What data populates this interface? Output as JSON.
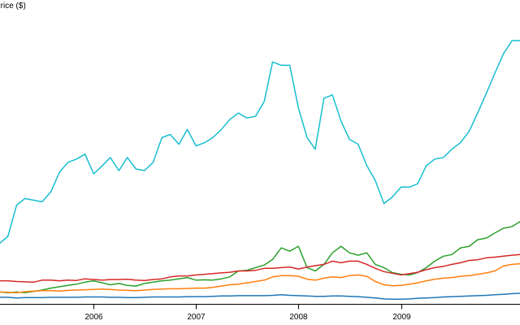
{
  "chart_data": {
    "type": "line",
    "ylabel": "Price ($)",
    "xlim": [
      "2005-02-01",
      "2010-03-01"
    ],
    "ylim": [
      0,
      800
    ],
    "x_ticks": [
      {
        "date": "2006-01-01",
        "label": "2006"
      },
      {
        "date": "2007-01-01",
        "label": "2007"
      },
      {
        "date": "2008-01-01",
        "label": "2008"
      },
      {
        "date": "2009-01-01",
        "label": "2009"
      }
    ],
    "x": [
      "2005-02",
      "2005-03",
      "2005-04",
      "2005-05",
      "2005-06",
      "2005-07",
      "2005-08",
      "2005-09",
      "2005-10",
      "2005-11",
      "2005-12",
      "2006-01",
      "2006-02",
      "2006-03",
      "2006-04",
      "2006-05",
      "2006-06",
      "2006-07",
      "2006-08",
      "2006-09",
      "2006-10",
      "2006-11",
      "2006-12",
      "2007-01",
      "2007-02",
      "2007-03",
      "2007-04",
      "2007-05",
      "2007-06",
      "2007-07",
      "2007-08",
      "2007-09",
      "2007-10",
      "2007-11",
      "2007-12",
      "2008-01",
      "2008-02",
      "2008-03",
      "2008-04",
      "2008-05",
      "2008-06",
      "2008-07",
      "2008-08",
      "2008-09",
      "2008-10",
      "2008-11",
      "2008-12",
      "2009-01",
      "2009-02",
      "2009-03",
      "2009-04",
      "2009-05",
      "2009-06",
      "2009-07",
      "2009-08",
      "2009-09",
      "2009-10",
      "2009-11",
      "2009-12",
      "2010-01",
      "2010-02",
      "2010-03"
    ],
    "series": [
      {
        "color": "#17becf",
        "values": [
          185,
          205,
          300,
          320,
          315,
          310,
          340,
          400,
          430,
          440,
          455,
          395,
          420,
          445,
          405,
          445,
          410,
          405,
          430,
          505,
          515,
          485,
          530,
          480,
          490,
          505,
          530,
          560,
          580,
          565,
          570,
          615,
          735,
          725,
          725,
          595,
          505,
          470,
          625,
          635,
          555,
          500,
          485,
          420,
          375,
          305,
          325,
          355,
          355,
          365,
          420,
          440,
          445,
          470,
          490,
          525,
          580,
          640,
          700,
          760,
          800,
          800
        ]
      },
      {
        "color": "#2ca02c",
        "values": [
          36,
          34,
          36,
          34,
          38,
          42,
          48,
          52,
          56,
          60,
          66,
          70,
          64,
          58,
          62,
          56,
          54,
          62,
          66,
          70,
          72,
          76,
          80,
          72,
          73,
          72,
          76,
          82,
          100,
          102,
          110,
          118,
          135,
          170,
          160,
          175,
          110,
          100,
          120,
          155,
          175,
          155,
          148,
          155,
          120,
          110,
          95,
          90,
          88,
          95,
          110,
          130,
          145,
          150,
          170,
          175,
          195,
          200,
          215,
          230,
          235,
          250
        ]
      },
      {
        "color": "#d62728",
        "values": [
          70,
          70,
          68,
          67,
          66,
          72,
          72,
          70,
          72,
          71,
          76,
          74,
          72,
          74,
          74,
          75,
          72,
          71,
          74,
          76,
          82,
          85,
          85,
          88,
          90,
          92,
          94,
          96,
          100,
          100,
          102,
          108,
          108,
          110,
          112,
          106,
          112,
          116,
          120,
          130,
          125,
          130,
          130,
          120,
          108,
          98,
          93,
          88,
          92,
          96,
          104,
          110,
          114,
          120,
          125,
          132,
          134,
          140,
          142,
          145,
          148,
          150
        ]
      },
      {
        "color": "#ff7f0e",
        "values": [
          36,
          35,
          34,
          37,
          39,
          40,
          40,
          39,
          41,
          42,
          43,
          44,
          45,
          44,
          42,
          41,
          40,
          42,
          44,
          45,
          46,
          46,
          47,
          48,
          48,
          50,
          54,
          58,
          60,
          64,
          68,
          72,
          82,
          86,
          86,
          84,
          75,
          72,
          78,
          82,
          80,
          86,
          88,
          84,
          68,
          58,
          55,
          56,
          60,
          64,
          70,
          75,
          78,
          80,
          84,
          86,
          90,
          94,
          100,
          115,
          120,
          122
        ]
      },
      {
        "color": "#1f77b4",
        "values": [
          20,
          20,
          18,
          19,
          19,
          19,
          20,
          20,
          20,
          20,
          21,
          21,
          21,
          20,
          20,
          19,
          19,
          20,
          21,
          21,
          21,
          21,
          22,
          22,
          22,
          23,
          24,
          24,
          25,
          25,
          25,
          25,
          26,
          28,
          26,
          25,
          24,
          23,
          23,
          24,
          24,
          23,
          22,
          20,
          18,
          15,
          14,
          14,
          15,
          17,
          18,
          19,
          21,
          22,
          23,
          24,
          25,
          26,
          28,
          29,
          31,
          32
        ]
      }
    ]
  }
}
